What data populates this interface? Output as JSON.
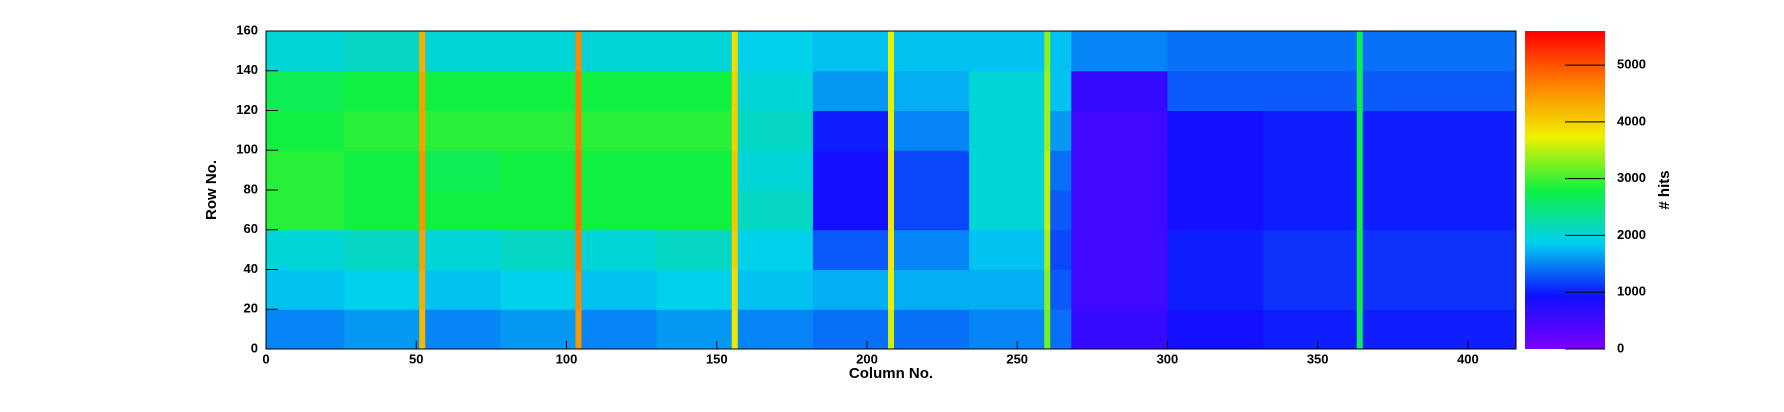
{
  "chart_data": {
    "type": "heatmap",
    "xlabel": "Column No.",
    "ylabel": "Row No.",
    "zlabel": "# hits",
    "xbins": [
      0,
      26,
      51,
      53,
      78,
      103,
      105,
      130,
      155,
      157,
      182,
      207,
      209,
      234,
      259,
      261,
      268,
      300,
      332,
      363,
      365,
      390,
      416
    ],
    "ybins": [
      0,
      20,
      40,
      60,
      80,
      100,
      120,
      140,
      160
    ],
    "z": [
      [
        1500,
        1600,
        4200,
        1500,
        1600,
        4500,
        1500,
        1600,
        3800,
        1500,
        1400,
        3600,
        1400,
        1500,
        3200,
        1400,
        600,
        900,
        1000,
        2600,
        1000,
        1000
      ],
      [
        1800,
        1900,
        4300,
        1800,
        1900,
        4600,
        1800,
        1900,
        3900,
        1800,
        1700,
        3700,
        1700,
        1700,
        3300,
        1300,
        500,
        1000,
        1100,
        2800,
        1100,
        1100
      ],
      [
        2000,
        2100,
        4400,
        2000,
        2100,
        4700,
        2000,
        2100,
        4000,
        1900,
        1300,
        3800,
        1500,
        1800,
        3400,
        1200,
        500,
        1000,
        1100,
        2800,
        1100,
        1100
      ],
      [
        2900,
        2800,
        4500,
        2800,
        2800,
        4800,
        2800,
        2800,
        4100,
        2100,
        900,
        3800,
        1200,
        2000,
        3500,
        1300,
        500,
        900,
        1000,
        2800,
        1000,
        1000
      ],
      [
        2900,
        2800,
        4500,
        2700,
        2800,
        4800,
        2800,
        2800,
        4100,
        2000,
        900,
        3800,
        1200,
        2000,
        3500,
        1400,
        500,
        900,
        1000,
        2800,
        1000,
        1000
      ],
      [
        2800,
        2900,
        4400,
        2900,
        2900,
        4700,
        2900,
        2900,
        4000,
        2100,
        1000,
        3700,
        1500,
        2000,
        3400,
        1600,
        500,
        900,
        1000,
        2700,
        1000,
        1000
      ],
      [
        2700,
        2800,
        4400,
        2800,
        2800,
        4700,
        2800,
        2800,
        4000,
        2000,
        1600,
        3700,
        1700,
        2000,
        3400,
        1800,
        600,
        1300,
        1300,
        2700,
        1300,
        1300
      ],
      [
        2000,
        2100,
        4300,
        2000,
        2000,
        4600,
        2000,
        2000,
        3900,
        1900,
        1800,
        3700,
        1800,
        1800,
        3300,
        1800,
        1500,
        1400,
        1400,
        2700,
        1400,
        1400
      ]
    ],
    "xlim": [
      0,
      416
    ],
    "ylim": [
      0,
      160
    ],
    "zlim": [
      0,
      5600
    ],
    "xticks": [
      0,
      50,
      100,
      150,
      200,
      250,
      300,
      350,
      400
    ],
    "yticks": [
      0,
      20,
      40,
      60,
      80,
      100,
      120,
      140,
      160
    ],
    "zticks": [
      0,
      1000,
      2000,
      3000,
      4000,
      5000
    ],
    "colorscale": [
      "#7a00ff",
      "#1010ff",
      "#00d0f0",
      "#10f040",
      "#f0f000",
      "#ff8000",
      "#ff0000"
    ]
  }
}
